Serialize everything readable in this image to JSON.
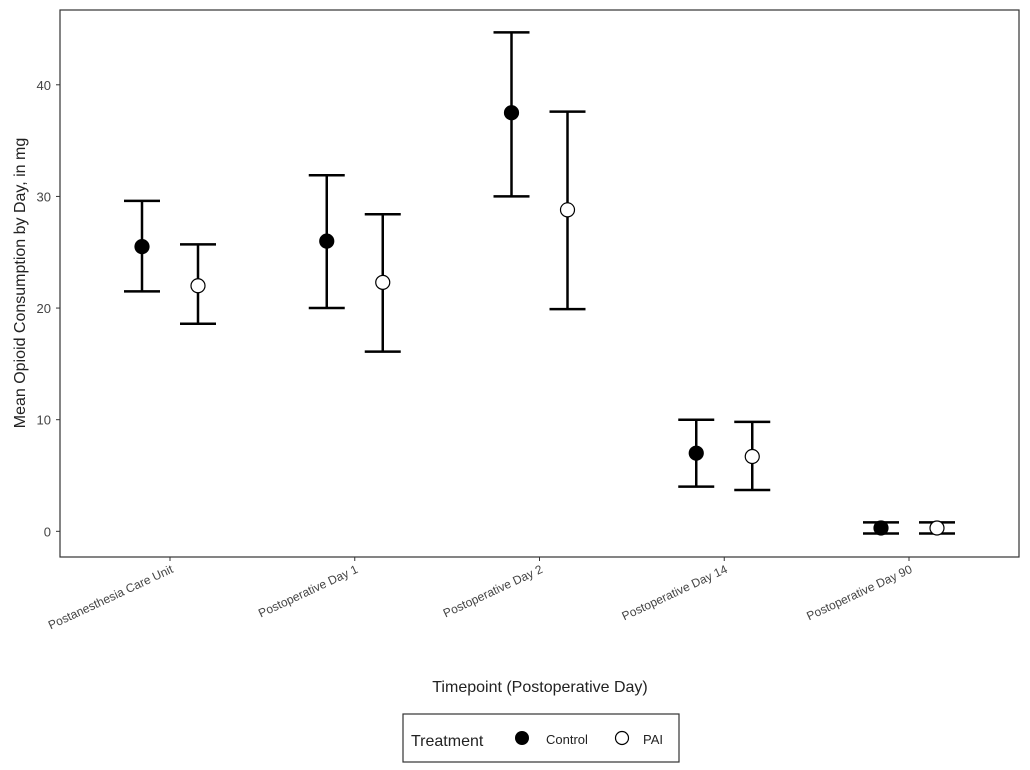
{
  "chart_data": {
    "type": "scatter",
    "subtype": "point-with-error-bars",
    "xlabel": "Timepoint (Postoperative Day)",
    "ylabel": "Mean Opioid Consumption by Day, in mg",
    "categories": [
      "Postanesthesia Care Unit",
      "Postoperative Day 1",
      "Postoperative Day 2",
      "Postoperative Day 14",
      "Postoperative Day 90"
    ],
    "ylim": [
      -2.3,
      46.7
    ],
    "yticks": [
      0,
      10,
      20,
      30,
      40
    ],
    "grid": false,
    "legend": {
      "title": "Treatment",
      "placement": "bottom"
    },
    "series": [
      {
        "name": "Control",
        "marker": "filled-circle",
        "color": "#000000",
        "values": [
          25.5,
          26.0,
          37.5,
          7.0,
          0.3
        ],
        "upper": [
          29.6,
          31.9,
          44.7,
          10.0,
          0.8
        ],
        "lower": [
          21.5,
          20.0,
          30.0,
          4.0,
          -0.2
        ]
      },
      {
        "name": "PAI",
        "marker": "open-circle",
        "color": "#ffffff",
        "values": [
          22.0,
          22.3,
          28.8,
          6.7,
          0.3
        ],
        "upper": [
          25.7,
          28.4,
          37.6,
          9.8,
          0.8
        ],
        "lower": [
          18.6,
          16.1,
          19.9,
          3.7,
          -0.2
        ]
      }
    ]
  }
}
